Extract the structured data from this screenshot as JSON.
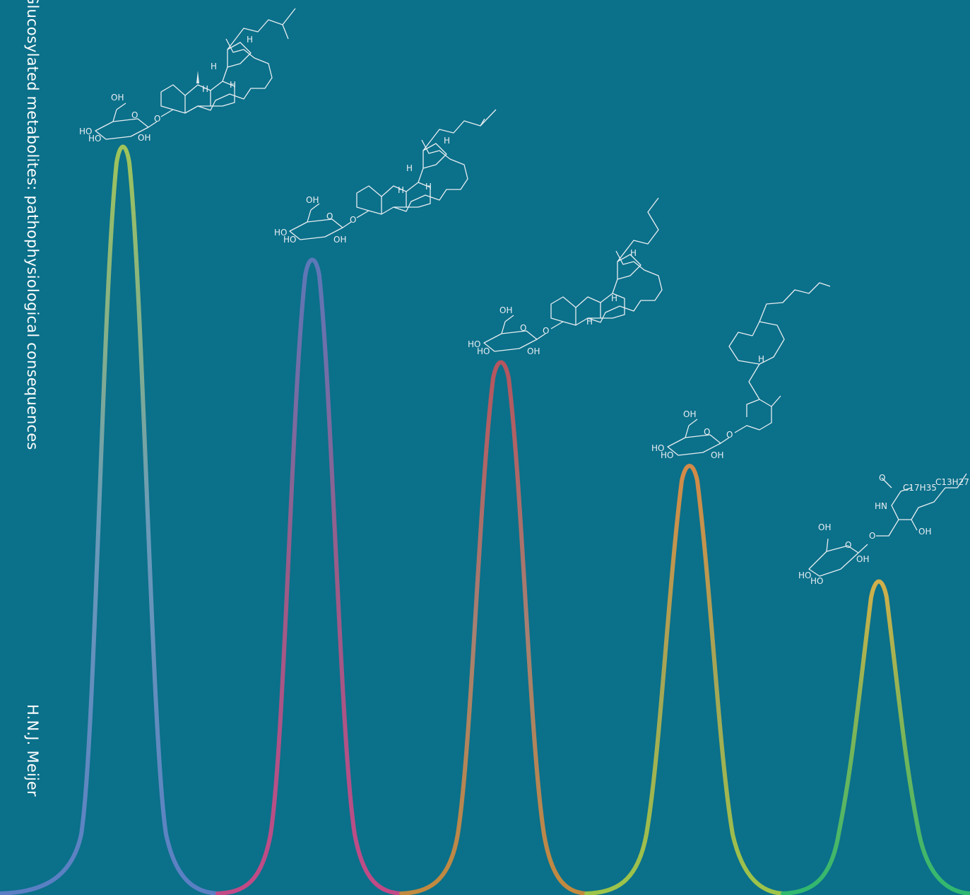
{
  "cover": {
    "title": "Glucosylated metabolites: pathophysiological consequences",
    "author": "H.N.J. Meijer",
    "background_color": "#0b708a"
  },
  "peaks": [
    {
      "label": "peak-1",
      "colors": [
        "#9fc45a",
        "#6a9bb8",
        "#5a7fc4"
      ]
    },
    {
      "label": "peak-2",
      "colors": [
        "#5c78b8",
        "#9b5c86",
        "#c24a86"
      ]
    },
    {
      "label": "peak-3",
      "colors": [
        "#b5555f",
        "#a58072",
        "#c28a3e"
      ]
    },
    {
      "label": "peak-4",
      "colors": [
        "#d48a48",
        "#a4a656",
        "#9cc54a"
      ]
    },
    {
      "label": "peak-5",
      "colors": [
        "#d2b04a",
        "#7ab558",
        "#2fb870"
      ]
    }
  ],
  "molecule_labels": {
    "oh": "OH",
    "ho": "HO",
    "o": "O",
    "h": "H",
    "hn": "HN",
    "c17h35": "C17H35",
    "c13h27": "C13H27"
  }
}
